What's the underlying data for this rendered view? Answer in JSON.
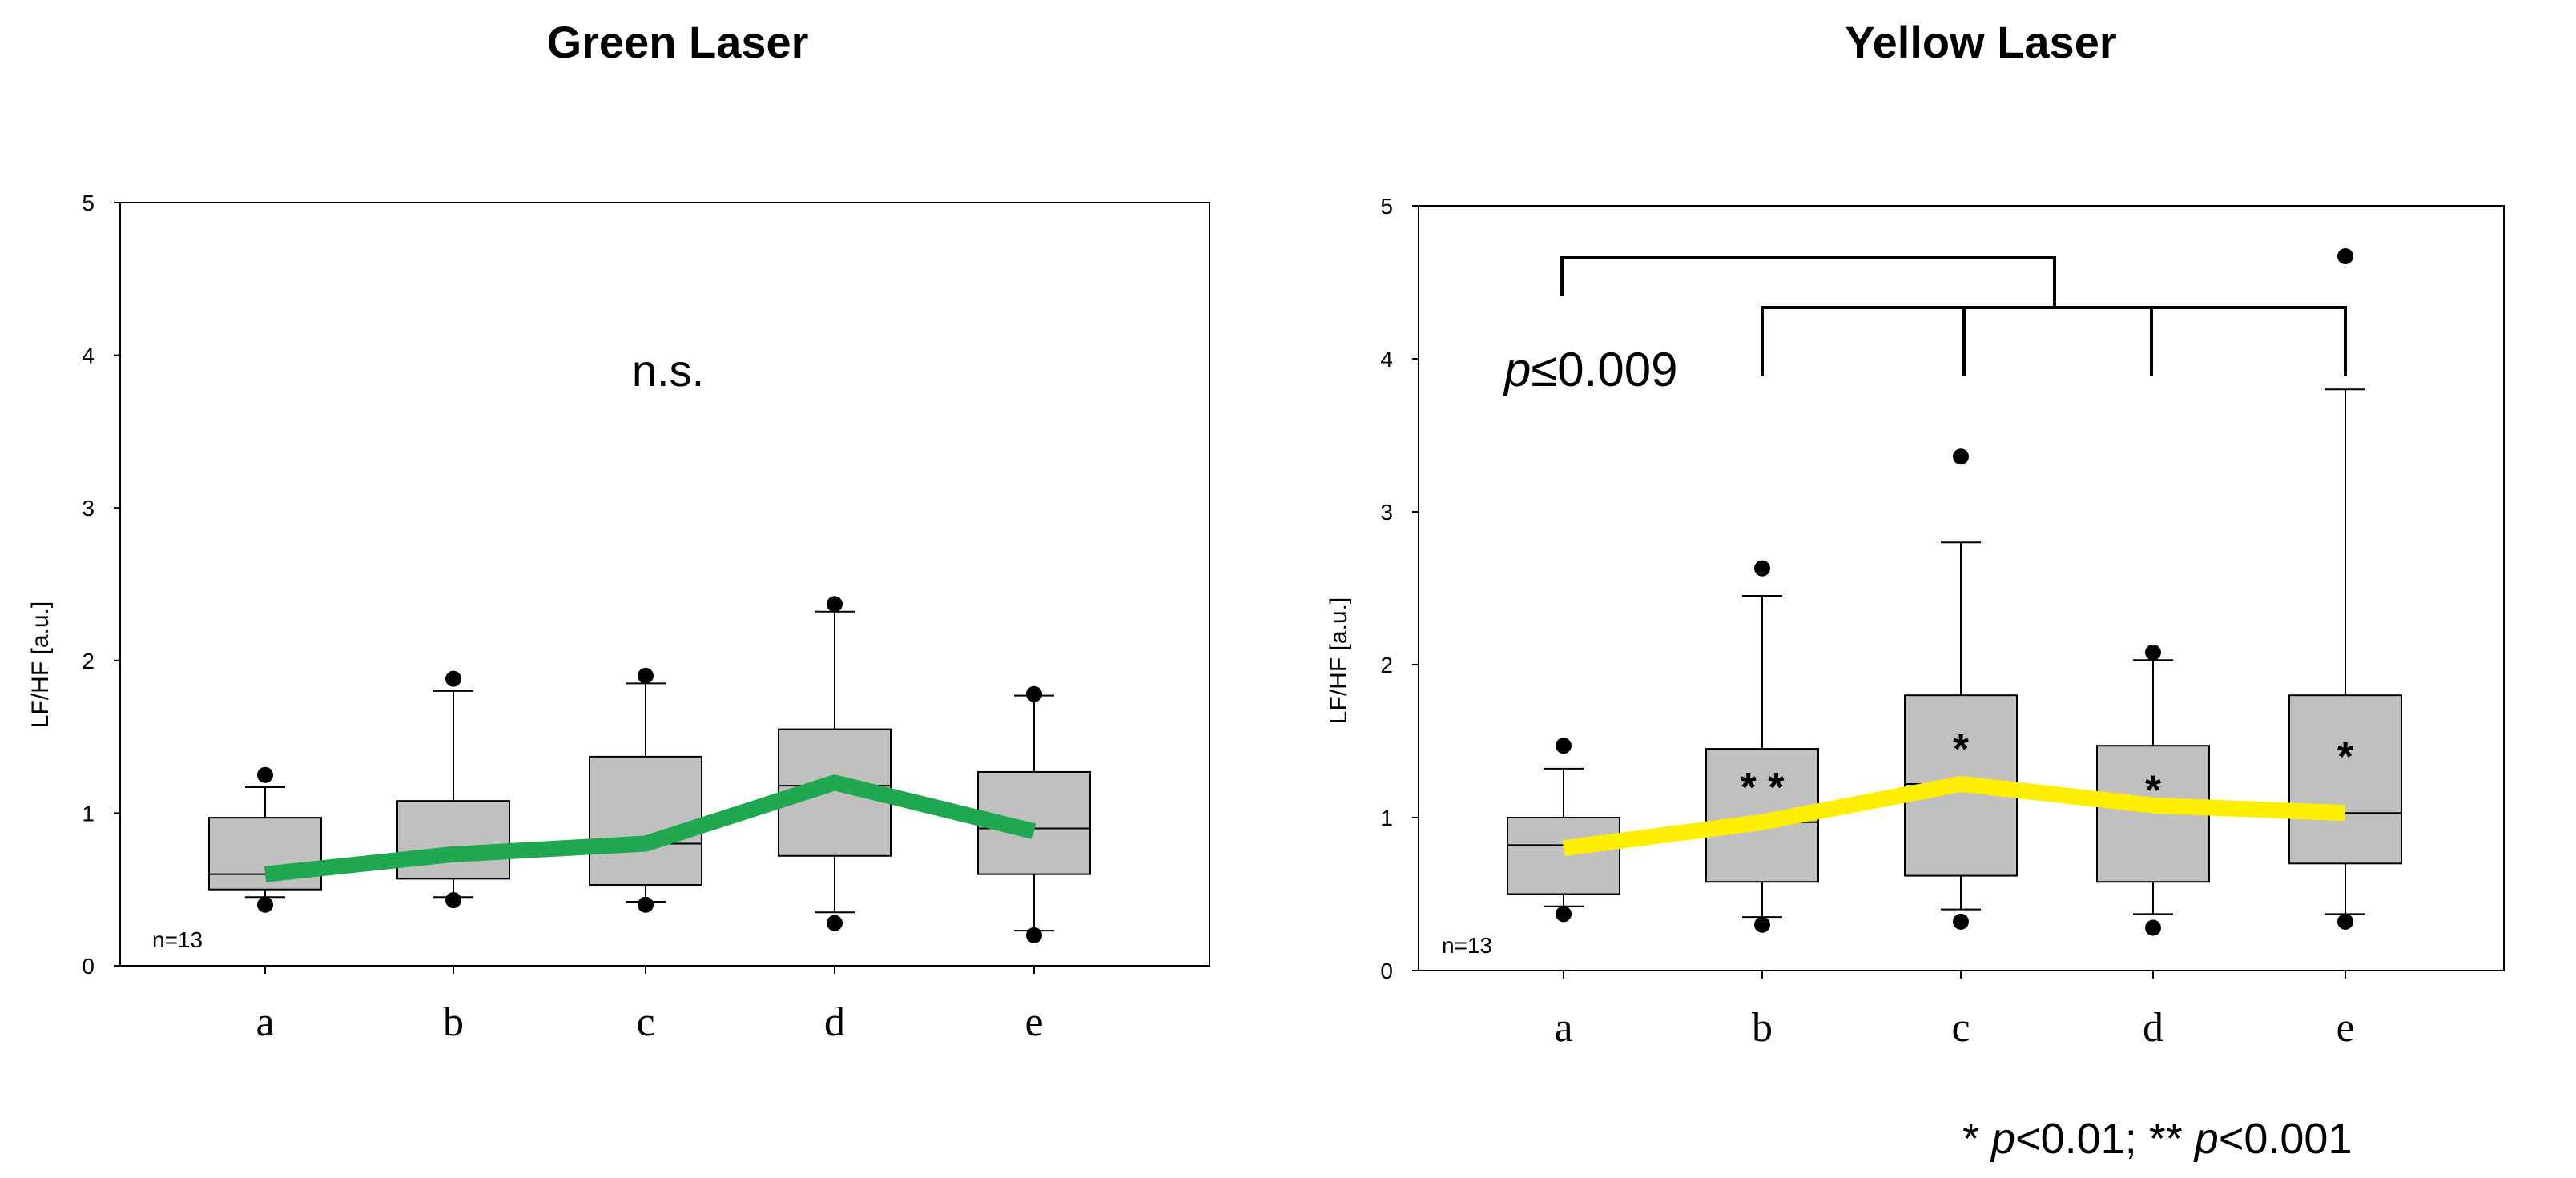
{
  "chart_data": [
    {
      "type": "box",
      "title": "Green Laser",
      "ylabel": "LF/HF [a.u.]",
      "xlabel": "",
      "ylim": [
        0,
        5
      ],
      "yticks": [
        "0",
        "1",
        "2",
        "3",
        "4",
        "5"
      ],
      "categories": [
        "a",
        "b",
        "c",
        "d",
        "e"
      ],
      "n_label": "n=13",
      "annotation": "n.s.",
      "line_color": "#1fa84f",
      "boxes": [
        {
          "cat": "a",
          "whisker_low": 0.45,
          "q1": 0.5,
          "median": 0.6,
          "q3": 0.97,
          "whisker_high": 1.17,
          "outliers": [
            0.4,
            1.25
          ]
        },
        {
          "cat": "b",
          "whisker_low": 0.45,
          "q1": 0.57,
          "median": 0.73,
          "q3": 1.08,
          "whisker_high": 1.8,
          "outliers": [
            0.43,
            1.88
          ]
        },
        {
          "cat": "c",
          "whisker_low": 0.42,
          "q1": 0.53,
          "median": 0.8,
          "q3": 1.37,
          "whisker_high": 1.85,
          "outliers": [
            0.4,
            1.9
          ]
        },
        {
          "cat": "d",
          "whisker_low": 0.35,
          "q1": 0.72,
          "median": 1.18,
          "q3": 1.55,
          "whisker_high": 2.32,
          "outliers": [
            0.28,
            2.37
          ]
        },
        {
          "cat": "e",
          "whisker_low": 0.23,
          "q1": 0.6,
          "median": 0.9,
          "q3": 1.27,
          "whisker_high": 1.77,
          "outliers": [
            0.2,
            1.78
          ]
        }
      ],
      "trend": [
        0.6,
        0.73,
        0.8,
        1.2,
        0.88
      ]
    },
    {
      "type": "box",
      "title": "Yellow Laser",
      "ylabel": "LF/HF [a.u.]",
      "xlabel": "",
      "ylim": [
        0,
        5
      ],
      "yticks": [
        "0",
        "1",
        "2",
        "3",
        "4",
        "5"
      ],
      "categories": [
        "a",
        "b",
        "c",
        "d",
        "e"
      ],
      "n_label": "n=13",
      "line_color": "#ffee00",
      "p_italic": "p",
      "p_rest": "≤0.009",
      "boxes": [
        {
          "cat": "a",
          "whisker_low": 0.42,
          "q1": 0.5,
          "median": 0.82,
          "q3": 1.0,
          "whisker_high": 1.32,
          "outliers": [
            0.37,
            1.47
          ],
          "sig": ""
        },
        {
          "cat": "b",
          "whisker_low": 0.35,
          "q1": 0.58,
          "median": 0.97,
          "q3": 1.45,
          "whisker_high": 2.45,
          "outliers": [
            0.3,
            2.63
          ],
          "sig": "**"
        },
        {
          "cat": "c",
          "whisker_low": 0.4,
          "q1": 0.62,
          "median": 1.22,
          "q3": 1.8,
          "whisker_high": 2.8,
          "outliers": [
            0.32,
            3.36
          ],
          "sig": "*"
        },
        {
          "cat": "d",
          "whisker_low": 0.37,
          "q1": 0.58,
          "median": 1.1,
          "q3": 1.47,
          "whisker_high": 2.03,
          "outliers": [
            0.28,
            2.08
          ],
          "sig": "*"
        },
        {
          "cat": "e",
          "whisker_low": 0.37,
          "q1": 0.7,
          "median": 1.03,
          "q3": 1.8,
          "whisker_high": 3.8,
          "outliers": [
            0.32,
            4.67
          ],
          "sig": "*"
        }
      ],
      "trend": [
        0.8,
        0.97,
        1.22,
        1.08,
        1.03
      ],
      "footnote": {
        "star1": "* ",
        "p1": "p",
        "rest1": "<0.01; ** ",
        "p2": "p",
        "rest2": "<0.001"
      }
    }
  ]
}
